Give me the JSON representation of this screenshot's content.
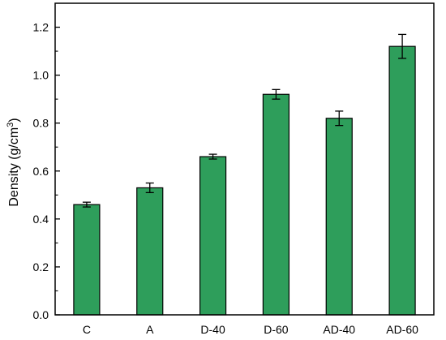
{
  "chart_data": {
    "type": "bar",
    "categories": [
      "C",
      "A",
      "D-40",
      "D-60",
      "AD-40",
      "AD-60"
    ],
    "values": [
      0.46,
      0.53,
      0.66,
      0.92,
      0.82,
      1.12
    ],
    "errors": [
      0.01,
      0.02,
      0.01,
      0.02,
      0.03,
      0.05
    ],
    "title": "",
    "xlabel": "",
    "ylabel": "Density (g/cm",
    "ylabel_sup": "3",
    "ylabel_end": ")",
    "ylim": [
      0,
      1.3
    ],
    "yticks": [
      "0.0",
      "0.2",
      "0.4",
      "0.6",
      "0.8",
      "1.0",
      "1.2"
    ],
    "bar_color": "#2e9e5b",
    "grid": false,
    "legend": "none"
  }
}
